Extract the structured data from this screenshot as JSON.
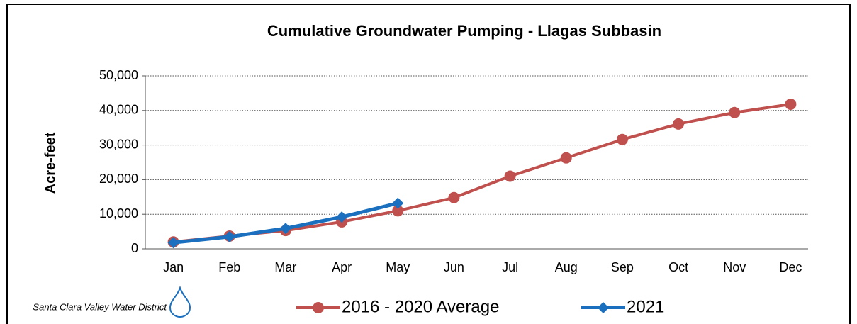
{
  "chart_data": {
    "type": "line",
    "title": "Cumulative Groundwater Pumping - Llagas Subbasin",
    "y_label": "Acre-feet",
    "logo_text": "Santa Clara Valley Water District",
    "categories": [
      "Jan",
      "Feb",
      "Mar",
      "Apr",
      "May",
      "Jun",
      "Jul",
      "Aug",
      "Sep",
      "Oct",
      "Nov",
      "Dec"
    ],
    "series": [
      {
        "name": "2016 - 2020 Average",
        "color": "#c0504d",
        "marker": "circle",
        "values": [
          2000,
          3700,
          5300,
          7800,
          11000,
          14800,
          21000,
          26300,
          31600,
          36100,
          39400,
          41800
        ]
      },
      {
        "name": "2021",
        "color": "#1a6fbe",
        "marker": "diamond",
        "values": [
          1800,
          3500,
          5900,
          9200,
          13200,
          null,
          null,
          null,
          null,
          null,
          null,
          null
        ]
      }
    ],
    "ylim": [
      0,
      50000
    ],
    "yticks": [
      0,
      {
        "value": 10000,
        "label": "10,000"
      },
      {
        "value": 20000,
        "label": "20,000"
      },
      {
        "value": 30000,
        "label": "30,000"
      },
      {
        "value": 40000,
        "label": "40,000"
      },
      {
        "value": 50000,
        "label": "50,000"
      }
    ],
    "grid": true
  }
}
